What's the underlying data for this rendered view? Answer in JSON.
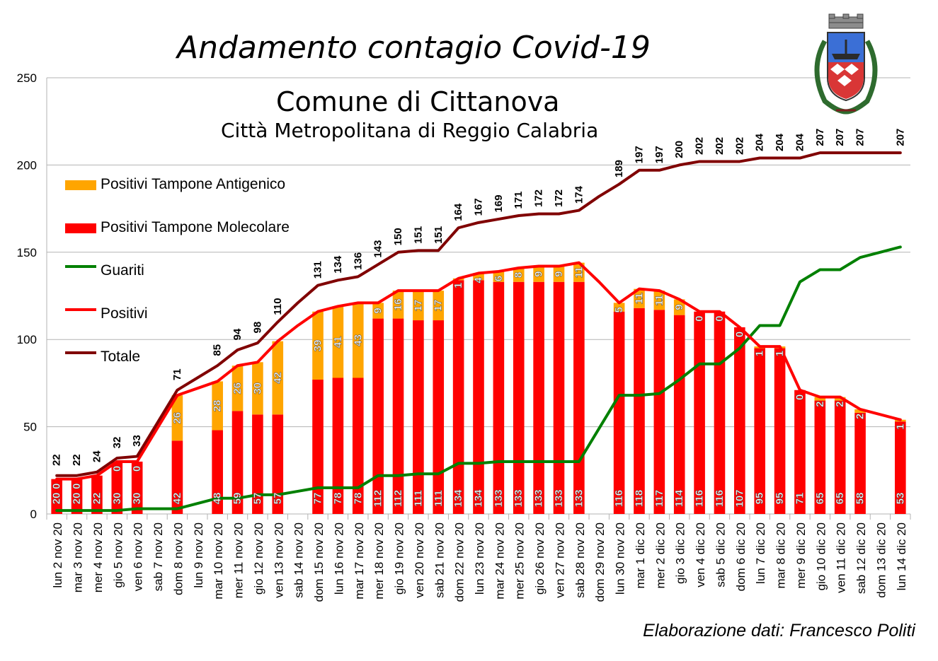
{
  "title": "Andamento contagio Covid-19",
  "subtitle1": "Comune di Cittanova",
  "subtitle2": "Città Metropolitana di Reggio Calabria",
  "credit": "Elaborazione dati: Francesco Politi",
  "colors": {
    "antigenico": "#ffa500",
    "molecolare": "#ff0000",
    "guariti": "#008000",
    "positivi": "#ff0000",
    "totale": "#800000"
  },
  "legend": [
    {
      "key": "antigenico",
      "label": "Positivi Tampone Antigenico",
      "shape": "box"
    },
    {
      "key": "molecolare",
      "label": "Positivi Tampone Molecolare",
      "shape": "box"
    },
    {
      "key": "guariti",
      "label": "Guariti",
      "shape": "line"
    },
    {
      "key": "positivi",
      "label": "Positivi",
      "shape": "line"
    },
    {
      "key": "totale",
      "label": "Totale",
      "shape": "line"
    }
  ],
  "chart_data": {
    "type": "bar",
    "ylim": [
      0,
      250
    ],
    "yticks": [
      0,
      50,
      100,
      150,
      200,
      250
    ],
    "grid": true,
    "legend_position": "left",
    "categories": [
      "lun 2 nov 20",
      "mar 3 nov 20",
      "mer 4 nov 20",
      "gio 5 nov 20",
      "ven 6 nov 20",
      "sab 7 nov 20",
      "dom 8 nov 20",
      "lun 9 nov 20",
      "mar 10 nov 20",
      "mer 11 nov 20",
      "gio 12 nov 20",
      "ven 13 nov 20",
      "sab 14 nov 20",
      "dom 15 nov 20",
      "lun 16 nov 20",
      "mar 17 nov 20",
      "mer 18 nov 20",
      "gio 19 nov 20",
      "ven 20 nov 20",
      "sab 21 nov 20",
      "dom 22 nov 20",
      "lun 23 nov 20",
      "mar 24 nov 20",
      "mer 25 nov 20",
      "gio 26 nov 20",
      "ven 27 nov 20",
      "sab 28 nov 20",
      "dom 29 nov 20",
      "lun 30 nov 20",
      "mar 1 dic 20",
      "mer 2 dic 20",
      "gio 3 dic 20",
      "ven 4 dic 20",
      "sab 5 dic 20",
      "dom 6 dic 20",
      "lun 7 dic 20",
      "mar 8 dic 20",
      "mer 9 dic 20",
      "gio 10 dic 20",
      "ven 11 dic 20",
      "sab 12 dic 20",
      "dom 13 dic 20",
      "lun 14 dic 20"
    ],
    "series": [
      {
        "name": "Positivi Tampone Molecolare",
        "kind": "bar",
        "values": [
          20,
          20,
          22,
          30,
          30,
          null,
          42,
          null,
          48,
          59,
          57,
          57,
          null,
          77,
          78,
          78,
          112,
          112,
          111,
          111,
          134,
          134,
          133,
          133,
          133,
          133,
          133,
          null,
          116,
          118,
          117,
          114,
          116,
          116,
          107,
          95,
          95,
          71,
          65,
          65,
          58,
          null,
          53
        ]
      },
      {
        "name": "Positivi Tampone Antigenico",
        "kind": "bar",
        "values": [
          0,
          0,
          null,
          0,
          0,
          null,
          26,
          null,
          28,
          26,
          30,
          42,
          null,
          39,
          41,
          43,
          9,
          16,
          17,
          17,
          1,
          4,
          6,
          8,
          9,
          9,
          11,
          null,
          5,
          11,
          11,
          9,
          0,
          0,
          0,
          1,
          1,
          0,
          2,
          2,
          2,
          null,
          1
        ]
      },
      {
        "name": "Guariti",
        "kind": "line",
        "values": [
          2,
          2,
          2,
          2,
          3,
          3,
          3,
          6,
          9,
          9,
          11,
          11,
          13,
          15,
          15,
          15,
          22,
          22,
          23,
          23,
          29,
          29,
          30,
          30,
          30,
          30,
          30,
          49,
          68,
          68,
          69,
          77,
          86,
          86,
          95,
          108,
          108,
          133,
          140,
          140,
          147,
          150,
          153
        ]
      },
      {
        "name": "Positivi",
        "kind": "line",
        "values": [
          20,
          20,
          22,
          30,
          30,
          49,
          68,
          72,
          76,
          85,
          87,
          99,
          108,
          116,
          119,
          121,
          121,
          128,
          128,
          128,
          135,
          138,
          139,
          141,
          142,
          142,
          144,
          133,
          121,
          129,
          128,
          123,
          116,
          116,
          107,
          96,
          96,
          71,
          67,
          67,
          60,
          57,
          54
        ]
      },
      {
        "name": "Totale",
        "kind": "line",
        "values": [
          22,
          22,
          24,
          32,
          33,
          52,
          71,
          78,
          85,
          94,
          98,
          110,
          121,
          131,
          134,
          136,
          143,
          150,
          151,
          151,
          164,
          167,
          169,
          171,
          172,
          172,
          174,
          182,
          189,
          197,
          197,
          200,
          202,
          202,
          202,
          204,
          204,
          204,
          207,
          207,
          207,
          207,
          207
        ]
      }
    ],
    "totale_labels": [
      "22",
      "22",
      "24",
      "32",
      "33",
      "",
      "71",
      "",
      "85",
      "94",
      "98",
      "110",
      "",
      "131",
      "134",
      "136",
      "143",
      "150",
      "151",
      "151",
      "164",
      "167",
      "169",
      "171",
      "172",
      "172",
      "174",
      "",
      "189",
      "197",
      "197",
      "200",
      "202",
      "202",
      "202",
      "204",
      "204",
      "204",
      "207",
      "207",
      "207",
      "",
      "207"
    ]
  }
}
